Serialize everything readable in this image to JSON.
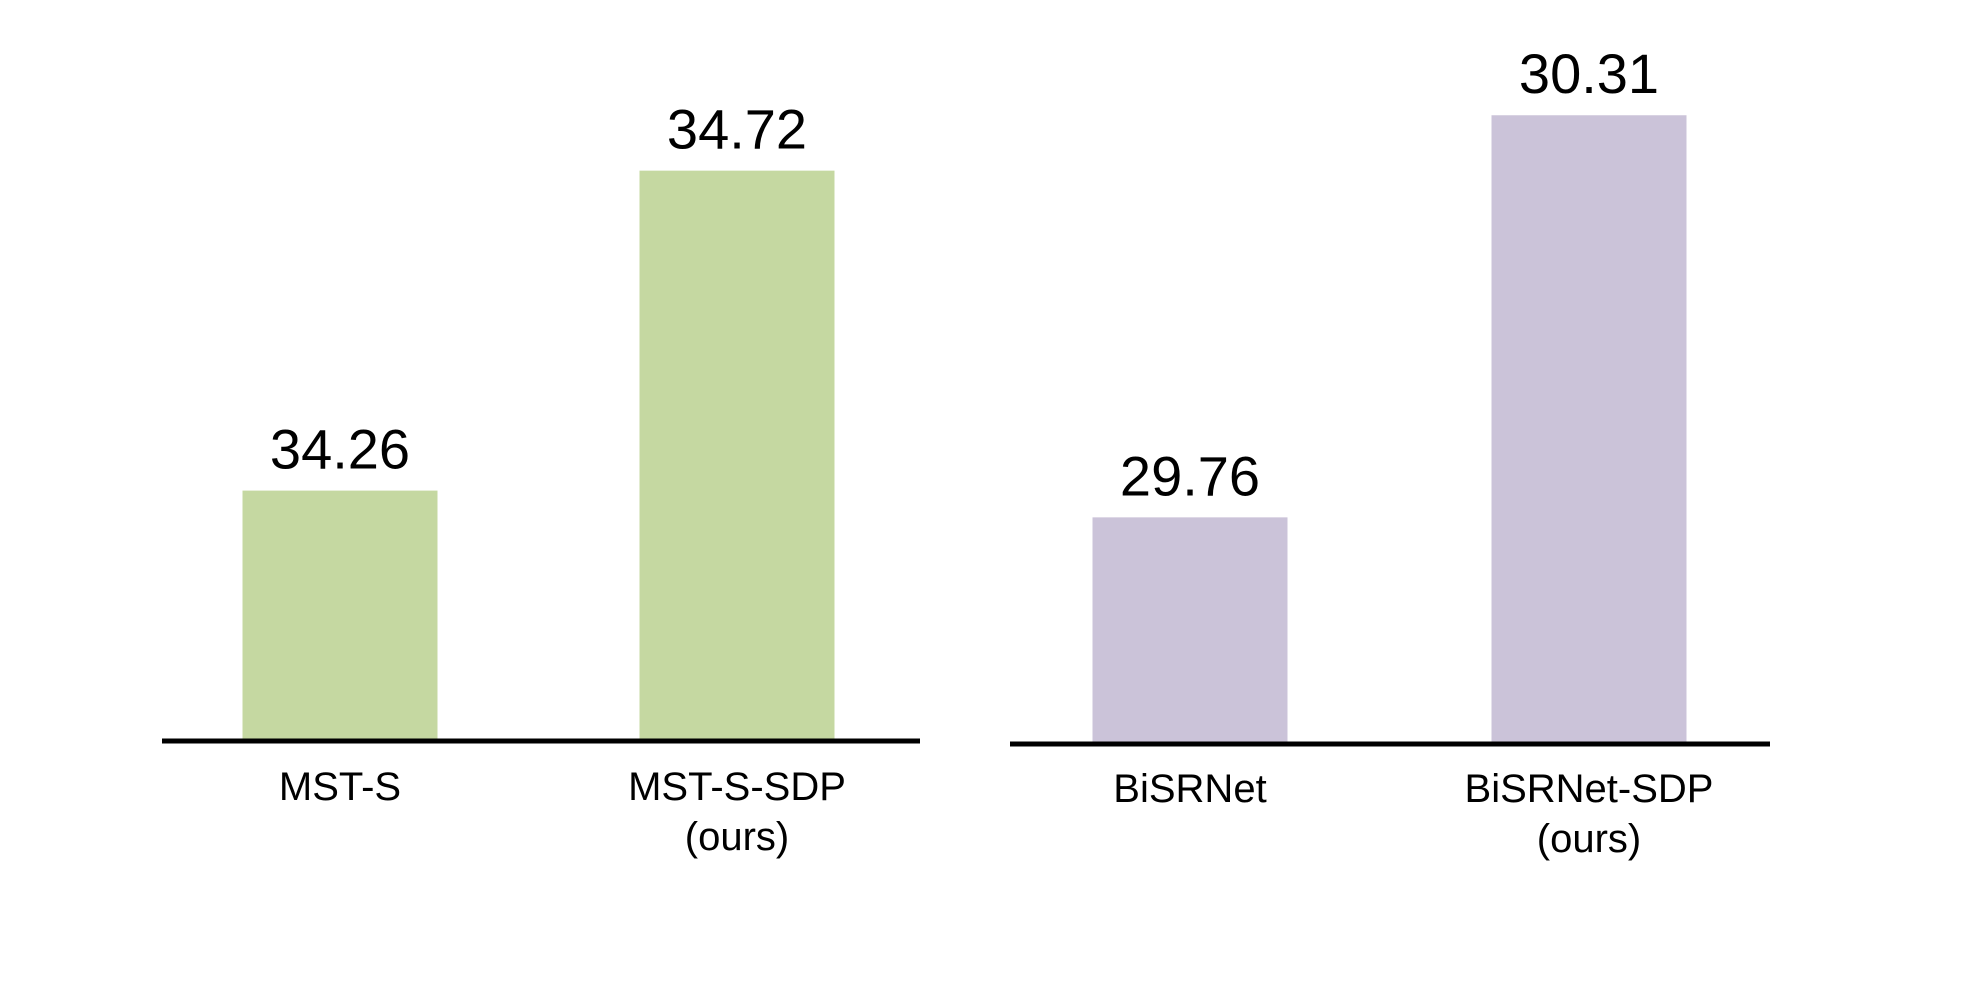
{
  "chart_data": [
    {
      "type": "bar",
      "categories": [
        "MST-S",
        "MST-S-SDP\n(ours)"
      ],
      "values": [
        34.26,
        34.72
      ],
      "value_labels": [
        "34.26",
        "34.72"
      ],
      "color": "#c5d8a1",
      "title": "",
      "xlabel": "",
      "ylabel": "",
      "ylim": [
        33.9,
        34.8
      ]
    },
    {
      "type": "bar",
      "categories": [
        "BiSRNet",
        "BiSRNet-SDP\n(ours)"
      ],
      "values": [
        29.76,
        30.31
      ],
      "value_labels": [
        "29.76",
        "30.31"
      ],
      "color": "#cbc3d9",
      "title": "",
      "xlabel": "",
      "ylabel": "",
      "ylim": [
        29.45,
        30.35
      ]
    }
  ]
}
